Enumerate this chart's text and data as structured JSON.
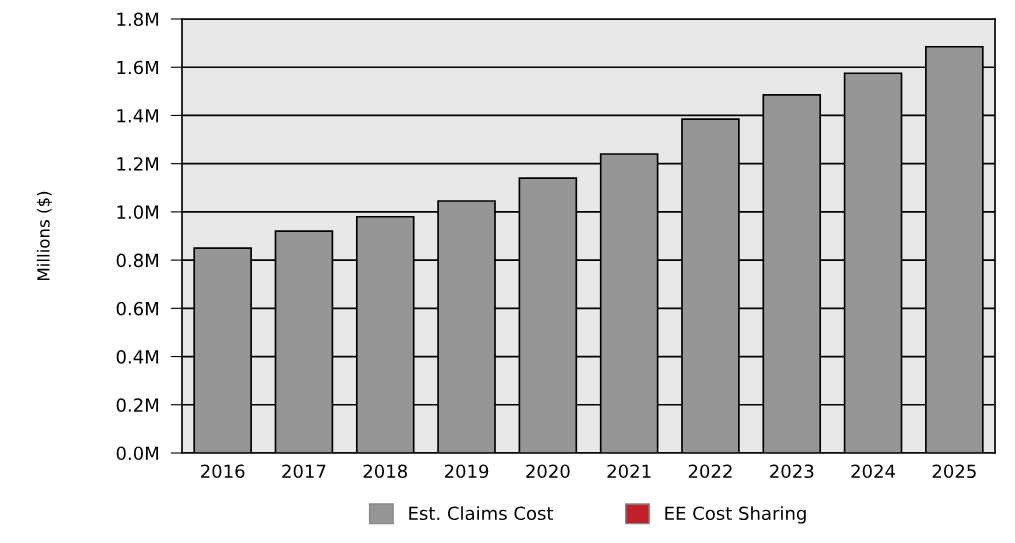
{
  "chart_data": {
    "type": "bar",
    "ylabel": "Millions ($)",
    "categories": [
      "2016",
      "2017",
      "2018",
      "2019",
      "2020",
      "2021",
      "2022",
      "2023",
      "2024",
      "2025"
    ],
    "series": [
      {
        "name": "Est. Claims Cost",
        "color": "#969696",
        "values": [
          0.85,
          0.92,
          0.98,
          1.045,
          1.14,
          1.24,
          1.385,
          1.485,
          1.575,
          1.685
        ]
      },
      {
        "name": "EE Cost Sharing",
        "color": "#c0202a",
        "values": [
          null,
          null,
          null,
          null,
          null,
          null,
          null,
          null,
          null,
          null
        ]
      }
    ],
    "ylim": [
      0,
      1.8
    ],
    "yticks": [
      {
        "value": 0,
        "label": "0.0M"
      },
      {
        "value": 0.2,
        "label": "0.2M"
      },
      {
        "value": 0.4,
        "label": "0.4M"
      },
      {
        "value": 0.6,
        "label": "0.6M"
      },
      {
        "value": 0.8,
        "label": "0.8M"
      },
      {
        "value": 1.0,
        "label": "1.0M"
      },
      {
        "value": 1.2,
        "label": "1.2M"
      },
      {
        "value": 1.4,
        "label": "1.4M"
      },
      {
        "value": 1.6,
        "label": "1.6M"
      },
      {
        "value": 1.8,
        "label": "1.8M"
      }
    ],
    "grid": "y",
    "legend": "bottom"
  }
}
